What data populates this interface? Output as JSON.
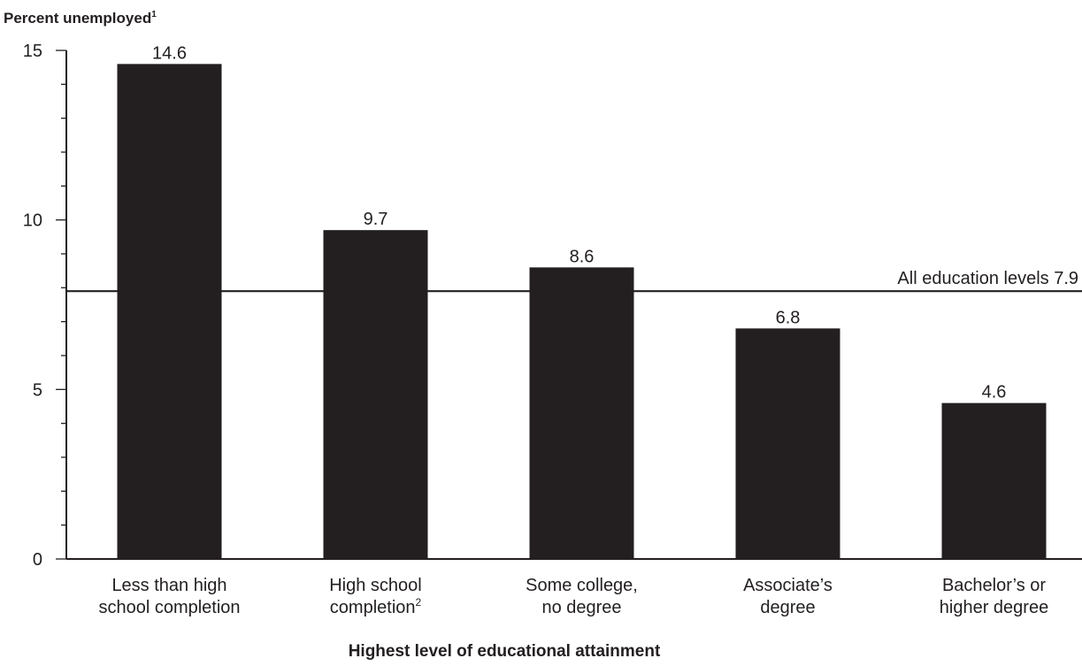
{
  "chart_data": {
    "type": "bar",
    "ylabel": "Percent unemployed",
    "ylabel_sup": "1",
    "xlabel": "Highest level of educational attainment",
    "ylim": [
      0,
      15
    ],
    "major_ticks": [
      0,
      5,
      10,
      15
    ],
    "minor_tick_step": 1,
    "grid": false,
    "bar_color": "#231f20",
    "categories": [
      {
        "lines": [
          "Less than high",
          "school completion"
        ],
        "sup": ""
      },
      {
        "lines": [
          "High school",
          "completion"
        ],
        "sup": "2"
      },
      {
        "lines": [
          "Some college,",
          "no degree"
        ],
        "sup": ""
      },
      {
        "lines": [
          "Associate’s",
          "degree"
        ],
        "sup": ""
      },
      {
        "lines": [
          "Bachelor’s or",
          "higher degree"
        ],
        "sup": ""
      }
    ],
    "values": [
      14.6,
      9.7,
      8.6,
      6.8,
      4.6
    ],
    "value_labels": [
      "14.6",
      "9.7",
      "8.6",
      "6.8",
      "4.6"
    ],
    "reference_line": {
      "value": 7.9,
      "label": "All education levels 7.9"
    }
  }
}
